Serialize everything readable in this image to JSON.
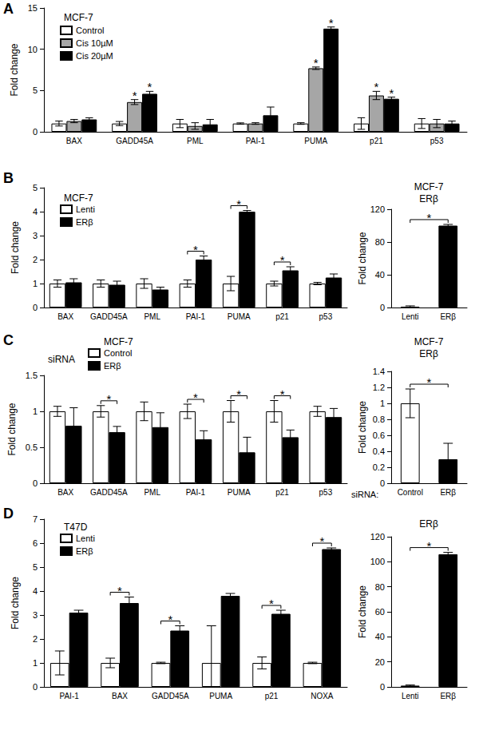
{
  "chart_data": [
    {
      "panel": "A",
      "type": "bar",
      "title": "MCF-7",
      "ylabel": "Fold change",
      "categories": [
        "BAX",
        "GADD45A",
        "PML",
        "PAI-1",
        "PUMA",
        "p21",
        "p53"
      ],
      "series": [
        {
          "name": "Control",
          "color": "#ffffff",
          "values": [
            1,
            1,
            1,
            1,
            1,
            1,
            1
          ],
          "errors": [
            0.3,
            0.25,
            0.5,
            0.08,
            0.1,
            0.7,
            0.6
          ]
        },
        {
          "name": "Cis 10µM",
          "color": "#a6a6a6",
          "values": [
            1.3,
            3.6,
            0.7,
            1.0,
            7.7,
            4.4,
            1.0
          ],
          "errors": [
            0.2,
            0.3,
            0.4,
            0.1,
            0.15,
            0.5,
            0.5
          ]
        },
        {
          "name": "Cis 20µM",
          "color": "#000000",
          "values": [
            1.5,
            4.6,
            0.9,
            2.0,
            12.5,
            4.0,
            1.0
          ],
          "errors": [
            0.2,
            0.3,
            0.6,
            1.0,
            0.2,
            0.2,
            0.3
          ]
        }
      ],
      "ylim": [
        0,
        15
      ],
      "yticks": [
        0,
        5,
        10,
        15
      ],
      "grid": false,
      "legend": "upper left",
      "annotations": [
        {
          "text": "*",
          "category": "GADD45A",
          "series": "Cis 10µM"
        },
        {
          "text": "*",
          "category": "GADD45A",
          "series": "Cis 20µM"
        },
        {
          "text": "*",
          "category": "PUMA",
          "series": "Cis 10µM"
        },
        {
          "text": "*",
          "category": "PUMA",
          "series": "Cis 20µM"
        },
        {
          "text": "*",
          "category": "p21",
          "series": "Cis 10µM"
        },
        {
          "text": "*",
          "category": "p21",
          "series": "Cis 20µM"
        }
      ]
    },
    {
      "panel": "B",
      "type": "bar",
      "title": "MCF-7",
      "ylabel": "Fold change",
      "categories": [
        "BAX",
        "GADD45A",
        "PML",
        "PAI-1",
        "PUMA",
        "p21",
        "p53"
      ],
      "series": [
        {
          "name": "Lenti",
          "color": "#ffffff",
          "values": [
            1,
            1,
            1,
            1,
            1,
            1,
            1
          ],
          "errors": [
            0.15,
            0.15,
            0.2,
            0.15,
            0.3,
            0.1,
            0.05
          ]
        },
        {
          "name": "ERβ",
          "color": "#000000",
          "values": [
            1.05,
            0.95,
            0.75,
            2.0,
            4.0,
            1.55,
            1.25
          ],
          "errors": [
            0.15,
            0.15,
            0.1,
            0.15,
            0.05,
            0.15,
            0.15
          ]
        }
      ],
      "ylim": [
        0,
        5
      ],
      "yticks": [
        0,
        1,
        2,
        3,
        4,
        5
      ],
      "grid": false,
      "legend": "upper left",
      "annotations": [
        {
          "text": "*",
          "category": "PAI-1"
        },
        {
          "text": "*",
          "category": "PUMA"
        },
        {
          "text": "*",
          "category": "p21"
        }
      ]
    },
    {
      "type": "bar",
      "title": "MCF-7\nERβ",
      "ylabel": "Fold change",
      "categories": [
        "Lenti",
        "ERβ"
      ],
      "values": [
        1,
        100
      ],
      "errors": [
        1,
        1.5
      ],
      "colors": [
        "#ffffff",
        "#000000"
      ],
      "ylim": [
        0,
        120
      ],
      "yticks": [
        0,
        40,
        80,
        120
      ],
      "grid": false,
      "annotations": [
        {
          "text": "*"
        }
      ]
    },
    {
      "panel": "C",
      "type": "bar",
      "title": "MCF-7",
      "legend_title": "siRNA",
      "categories": [
        "BAX",
        "GADD45A",
        "PML",
        "PAI-1",
        "PUMA",
        "p21",
        "p53"
      ],
      "ylabel": "Fold change",
      "series": [
        {
          "name": "Control",
          "color": "#ffffff",
          "values": [
            1,
            1,
            1,
            1,
            1,
            1,
            1
          ],
          "errors": [
            0.07,
            0.08,
            0.13,
            0.1,
            0.15,
            0.15,
            0.07
          ]
        },
        {
          "name": "ERβ",
          "color": "#000000",
          "values": [
            0.8,
            0.71,
            0.78,
            0.61,
            0.43,
            0.64,
            0.92
          ],
          "errors": [
            0.25,
            0.08,
            0.2,
            0.12,
            0.21,
            0.1,
            0.12
          ]
        }
      ],
      "ylim": [
        0,
        1.5
      ],
      "yticks": [
        0,
        0.5,
        1,
        1.5
      ],
      "grid": false,
      "legend": "upper left",
      "annotations": [
        {
          "text": "*",
          "category": "GADD45A"
        },
        {
          "text": "*",
          "category": "PAI-1"
        },
        {
          "text": "*",
          "category": "PUMA"
        },
        {
          "text": "*",
          "category": "p21"
        }
      ]
    },
    {
      "type": "bar",
      "title": "MCF-7\nERβ",
      "ylabel": "Fold change",
      "xlabel": "siRNA:",
      "categories": [
        "Control",
        "ERβ"
      ],
      "values": [
        1,
        0.3
      ],
      "errors": [
        0.18,
        0.2
      ],
      "colors": [
        "#ffffff",
        "#000000"
      ],
      "ylim": [
        0,
        1.4
      ],
      "yticks": [
        0,
        0.2,
        0.4,
        0.6,
        0.8,
        1,
        1.2,
        1.4
      ],
      "grid": false,
      "annotations": [
        {
          "text": "*"
        }
      ]
    },
    {
      "panel": "D",
      "type": "bar",
      "title": "T47D",
      "ylabel": "Fold change",
      "categories": [
        "PAI-1",
        "BAX",
        "GADD45A",
        "PUMA",
        "p21",
        "NOXA"
      ],
      "series": [
        {
          "name": "Lenti",
          "color": "#ffffff",
          "values": [
            1,
            1,
            1,
            1,
            1,
            1
          ],
          "errors": [
            0.5,
            0.2,
            0.03,
            1.55,
            0.25,
            0.03
          ]
        },
        {
          "name": "ERβ",
          "color": "#000000",
          "values": [
            3.1,
            3.5,
            2.35,
            3.8,
            3.05,
            5.75
          ],
          "errors": [
            0.1,
            0.25,
            0.2,
            0.1,
            0.15,
            0.05
          ]
        }
      ],
      "ylim": [
        0,
        7
      ],
      "yticks": [
        0,
        1,
        2,
        3,
        4,
        5,
        6,
        7
      ],
      "grid": false,
      "legend": "upper left",
      "annotations": [
        {
          "text": "*",
          "category": "BAX"
        },
        {
          "text": "*",
          "category": "GADD45A"
        },
        {
          "text": "*",
          "category": "p21"
        },
        {
          "text": "*",
          "category": "NOXA"
        }
      ]
    },
    {
      "type": "bar",
      "title": "ERβ",
      "ylabel": "Fold change",
      "categories": [
        "Lenti",
        "ERβ"
      ],
      "values": [
        1,
        106
      ],
      "errors": [
        0.5,
        1.5
      ],
      "colors": [
        "#ffffff",
        "#000000"
      ],
      "ylim": [
        0,
        120
      ],
      "yticks": [
        0,
        20,
        40,
        60,
        80,
        100,
        120
      ],
      "grid": false,
      "annotations": [
        {
          "text": "*"
        }
      ]
    }
  ]
}
